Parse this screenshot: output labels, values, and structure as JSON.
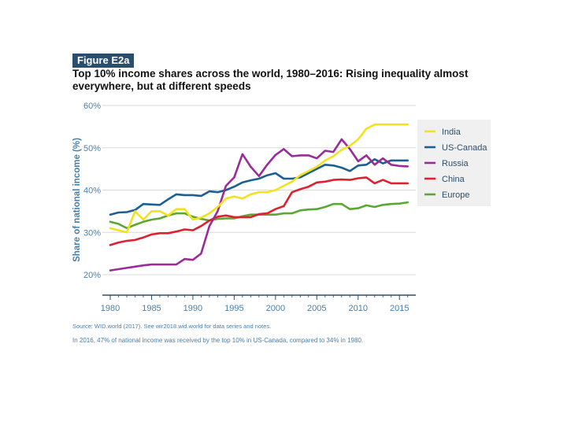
{
  "figure": {
    "badge": "Figure E2a",
    "title": "Top 10% income shares across the world, 1980–2016: Rising inequality almost everywhere, but at different speeds",
    "source": "Source: WID.world (2017). See wir2018.wid.world for data series and notes.",
    "note": "In 2016, 47% of national income was received by the top 10% in US-Canada, compared to 34% in 1980."
  },
  "chart_data": {
    "type": "line",
    "title": "Top 10% income shares across the world, 1980–2016: Rising inequality almost everywhere, but at different speeds",
    "xlabel": "",
    "ylabel": "Share of national income (%)",
    "xlim": [
      1980,
      2017
    ],
    "ylim": [
      0.2,
      0.6
    ],
    "x_ticks": [
      1980,
      1985,
      1990,
      1995,
      2000,
      2005,
      2010,
      2015
    ],
    "y_ticks": [
      {
        "value": 0.2,
        "label": "20%"
      },
      {
        "value": 0.3,
        "label": "30%"
      },
      {
        "value": 0.4,
        "label": "40%"
      },
      {
        "value": 0.5,
        "label": "50%"
      },
      {
        "value": 0.6,
        "label": "60%"
      }
    ],
    "grid": true,
    "legend_position": "right",
    "x": [
      1980,
      1981,
      1982,
      1983,
      1984,
      1985,
      1986,
      1987,
      1988,
      1989,
      1990,
      1991,
      1992,
      1993,
      1994,
      1995,
      1996,
      1997,
      1998,
      1999,
      2000,
      2001,
      2002,
      2003,
      2004,
      2005,
      2006,
      2007,
      2008,
      2009,
      2010,
      2011,
      2012,
      2013,
      2014,
      2015,
      2016
    ],
    "series": [
      {
        "name": "India",
        "color": "#f2e21c",
        "values": [
          0.31,
          0.305,
          0.3,
          0.35,
          0.33,
          0.35,
          0.35,
          0.34,
          0.355,
          0.355,
          0.33,
          0.335,
          0.345,
          0.36,
          0.38,
          0.385,
          0.38,
          0.39,
          0.395,
          0.395,
          0.4,
          0.41,
          0.42,
          0.435,
          0.445,
          0.455,
          0.47,
          0.48,
          0.495,
          0.505,
          0.52,
          0.545,
          0.555,
          0.555,
          0.555,
          0.555,
          0.555
        ]
      },
      {
        "name": "US-Canada",
        "color": "#1b5f93",
        "values": [
          0.342,
          0.347,
          0.348,
          0.353,
          0.367,
          0.366,
          0.365,
          0.378,
          0.39,
          0.388,
          0.388,
          0.386,
          0.397,
          0.395,
          0.4,
          0.408,
          0.418,
          0.423,
          0.427,
          0.435,
          0.44,
          0.427,
          0.427,
          0.43,
          0.44,
          0.45,
          0.46,
          0.458,
          0.453,
          0.445,
          0.458,
          0.46,
          0.473,
          0.463,
          0.47,
          0.47,
          0.47
        ]
      },
      {
        "name": "Russia",
        "color": "#9b2b9a",
        "values": [
          0.21,
          0.213,
          0.216,
          0.219,
          0.222,
          0.224,
          0.224,
          0.224,
          0.224,
          0.237,
          0.235,
          0.25,
          0.315,
          0.35,
          0.41,
          0.43,
          0.485,
          0.455,
          0.433,
          0.46,
          0.483,
          0.497,
          0.48,
          0.482,
          0.482,
          0.475,
          0.493,
          0.49,
          0.52,
          0.497,
          0.468,
          0.482,
          0.46,
          0.475,
          0.46,
          0.457,
          0.456
        ]
      },
      {
        "name": "China",
        "color": "#e02030",
        "values": [
          0.27,
          0.276,
          0.28,
          0.282,
          0.288,
          0.295,
          0.298,
          0.298,
          0.302,
          0.307,
          0.305,
          0.315,
          0.328,
          0.337,
          0.34,
          0.336,
          0.336,
          0.336,
          0.343,
          0.345,
          0.355,
          0.362,
          0.395,
          0.402,
          0.408,
          0.418,
          0.42,
          0.424,
          0.425,
          0.424,
          0.428,
          0.43,
          0.416,
          0.424,
          0.416,
          0.416,
          0.416
        ]
      },
      {
        "name": "Europe",
        "color": "#5aa832",
        "values": [
          0.325,
          0.32,
          0.31,
          0.318,
          0.325,
          0.33,
          0.333,
          0.34,
          0.345,
          0.345,
          0.337,
          0.332,
          0.328,
          0.332,
          0.333,
          0.333,
          0.338,
          0.342,
          0.342,
          0.342,
          0.342,
          0.345,
          0.345,
          0.352,
          0.354,
          0.355,
          0.36,
          0.367,
          0.367,
          0.355,
          0.357,
          0.364,
          0.36,
          0.365,
          0.367,
          0.368,
          0.371
        ]
      }
    ]
  }
}
